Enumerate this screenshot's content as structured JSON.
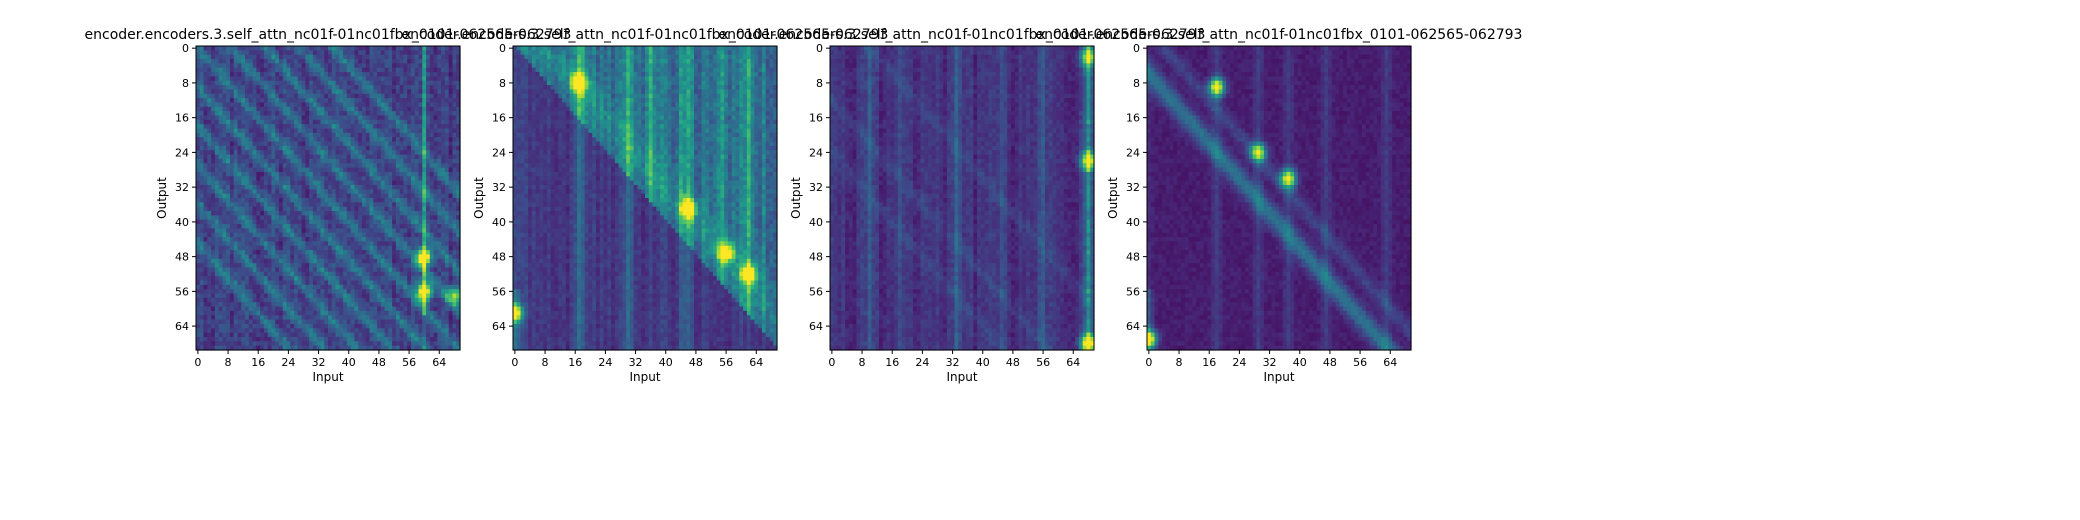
{
  "chart_data": [
    {
      "type": "heatmap",
      "title": "encoder.encoders.3.self_attn_nc01f-01nc01fbx_0101-062565-062793",
      "xlabel": "Input",
      "ylabel": "Output",
      "x_ticks": [
        0,
        8,
        16,
        24,
        32,
        40,
        48,
        56,
        64
      ],
      "y_ticks": [
        0,
        8,
        16,
        24,
        32,
        40,
        48,
        56,
        64
      ],
      "size": [
        70,
        70
      ],
      "colormap": "viridis",
      "pattern": "diagonal stripes in both triangles; bright vertical column near input 60 with peak around outputs 47-57",
      "peaks": [
        {
          "x": 60,
          "y": 48,
          "v": 0.95
        },
        {
          "x": 60,
          "y": 56,
          "v": 0.95
        },
        {
          "x": 68,
          "y": 57,
          "v": 0.6
        }
      ]
    },
    {
      "type": "heatmap",
      "title": "encoder.encoders.3.self_attn_nc01f-01nc01fbx_0101-062565-062793",
      "xlabel": "Input",
      "ylabel": "Output",
      "x_ticks": [
        0,
        8,
        16,
        24,
        32,
        40,
        48,
        56,
        64
      ],
      "y_ticks": [
        0,
        8,
        16,
        24,
        32,
        40,
        48,
        56,
        64
      ],
      "size": [
        70,
        70
      ],
      "colormap": "viridis",
      "pattern": "upper triangle bright, lower triangle dark; vertical bands near inputs 17, 45, 55, 62",
      "peaks": [
        {
          "x": 17,
          "y": 8,
          "v": 0.95
        },
        {
          "x": 46,
          "y": 37,
          "v": 0.9
        },
        {
          "x": 56,
          "y": 47,
          "v": 0.9
        },
        {
          "x": 62,
          "y": 52,
          "v": 0.9
        },
        {
          "x": 0,
          "y": 61,
          "v": 0.85
        }
      ]
    },
    {
      "type": "heatmap",
      "title": "encoder.encoders.3.self_attn_nc01f-01nc01fbx_0101-062565-062793",
      "xlabel": "Input",
      "ylabel": "Output",
      "x_ticks": [
        0,
        8,
        16,
        24,
        32,
        40,
        48,
        56,
        64
      ],
      "y_ticks": [
        0,
        8,
        16,
        24,
        32,
        40,
        48,
        56,
        64
      ],
      "size": [
        70,
        70
      ],
      "colormap": "viridis",
      "pattern": "mostly dark with faint vertical bands; bright column at the far right edge (input ~68)",
      "peaks": [
        {
          "x": 68,
          "y": 26,
          "v": 0.8
        },
        {
          "x": 68,
          "y": 68,
          "v": 0.95
        },
        {
          "x": 68,
          "y": 2,
          "v": 0.7
        }
      ]
    },
    {
      "type": "heatmap",
      "title": "encoder.encoders.3.self_attn_nc01f-01nc01fbx_0101-062565-062793",
      "xlabel": "Input",
      "ylabel": "Output",
      "x_ticks": [
        0,
        8,
        16,
        24,
        32,
        40,
        48,
        56,
        64
      ],
      "y_ticks": [
        0,
        8,
        16,
        24,
        32,
        40,
        48,
        56,
        64
      ],
      "size": [
        70,
        70
      ],
      "colormap": "viridis",
      "pattern": "bright diagonal band slightly below main diagonal; bright spots at input 0 for outputs ~65-68",
      "peaks": [
        {
          "x": 18,
          "y": 9,
          "v": 0.95
        },
        {
          "x": 37,
          "y": 30,
          "v": 0.9
        },
        {
          "x": 0,
          "y": 67,
          "v": 0.95
        },
        {
          "x": 29,
          "y": 24,
          "v": 0.8
        }
      ]
    }
  ]
}
